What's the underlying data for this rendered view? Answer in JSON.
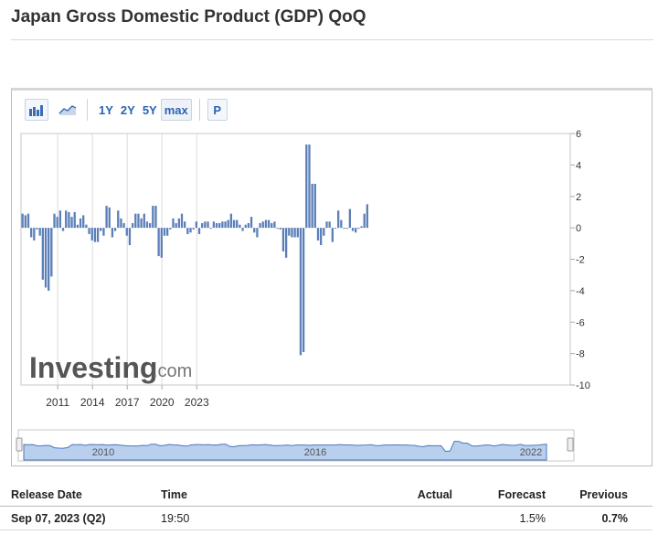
{
  "page": {
    "title": "Japan Gross Domestic Product (GDP) QoQ"
  },
  "toolbar": {
    "ranges": [
      "1Y",
      "2Y",
      "5Y",
      "max"
    ],
    "p_label": "P",
    "icons": [
      "bar-chart-icon",
      "area-chart-icon"
    ]
  },
  "watermark": {
    "main": "Investing",
    "suffix": ".com"
  },
  "chart_data": {
    "type": "bar",
    "title": "",
    "xlabel": "",
    "ylabel": "",
    "ylim": [
      -10,
      6
    ],
    "yticks": [
      6,
      4,
      2,
      0,
      -2,
      -4,
      -6,
      -8,
      -10
    ],
    "xticks": [
      "2011",
      "2014",
      "2017",
      "2020",
      "2023"
    ],
    "x_start": "2008 Q1",
    "bar_color": "#5b7fb8",
    "values": [
      0.9,
      0.8,
      0.9,
      -0.6,
      -0.8,
      -0.1,
      -0.5,
      -3.3,
      -3.8,
      -4.0,
      -3.1,
      0.9,
      0.7,
      1.1,
      -0.2,
      1.1,
      1.0,
      0.7,
      1.0,
      0.2,
      0.6,
      0.8,
      0.2,
      -0.4,
      -0.8,
      -0.9,
      -0.9,
      -0.2,
      -0.5,
      1.4,
      1.3,
      -0.6,
      -0.2,
      1.1,
      0.6,
      0.3,
      -0.5,
      -1.1,
      0.3,
      0.9,
      0.9,
      0.6,
      0.9,
      0.4,
      0.3,
      1.4,
      1.4,
      -1.8,
      -1.9,
      -0.5,
      -0.5,
      -0.1,
      0.6,
      0.3,
      0.6,
      0.9,
      0.4,
      -0.4,
      -0.3,
      -0.1,
      0.4,
      -0.4,
      0.3,
      0.4,
      0.4,
      0.0,
      0.4,
      0.3,
      0.3,
      0.4,
      0.4,
      0.5,
      0.9,
      0.5,
      0.5,
      0.2,
      -0.2,
      0.2,
      0.3,
      0.7,
      -0.3,
      -0.6,
      0.3,
      0.4,
      0.5,
      0.5,
      0.3,
      0.4,
      0.0,
      -0.1,
      -1.5,
      -1.9,
      -0.5,
      -0.6,
      -0.6,
      -0.6,
      -8.1,
      -7.9,
      5.3,
      5.3,
      2.8,
      2.8,
      -0.8,
      -1.1,
      -0.5,
      0.4,
      0.4,
      -0.9,
      0.0,
      1.1,
      0.5,
      0.0,
      0.0,
      1.2,
      -0.2,
      -0.3,
      0.0,
      0.1,
      0.9,
      1.5
    ]
  },
  "navigator": {
    "labels": [
      "2010",
      "2016",
      "2022"
    ]
  },
  "table": {
    "headers": {
      "release_date": "Release Date",
      "time": "Time",
      "actual": "Actual",
      "forecast": "Forecast",
      "previous": "Previous"
    },
    "rows": [
      {
        "release_date": "Sep 07, 2023 (Q2)",
        "time": "19:50",
        "actual": "",
        "forecast": "1.5%",
        "previous": "0.7%"
      }
    ]
  }
}
